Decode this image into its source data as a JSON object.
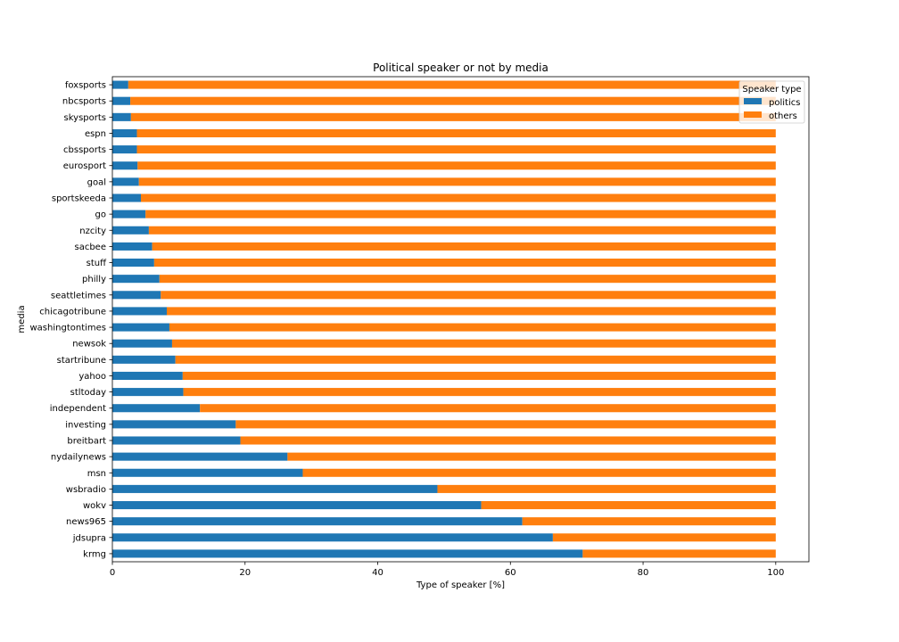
{
  "chart_data": {
    "type": "bar",
    "orientation": "horizontal",
    "stacked": true,
    "title": "Political speaker or not by media",
    "xlabel": "Type of speaker [%]",
    "ylabel": "media",
    "xlim": [
      0,
      105
    ],
    "xticks": [
      0,
      20,
      40,
      60,
      80,
      100
    ],
    "grid": false,
    "legend": {
      "title": "Speaker type",
      "placement": "top-right"
    },
    "categories": [
      "foxsports",
      "nbcsports",
      "skysports",
      "espn",
      "cbssports",
      "eurosport",
      "goal",
      "sportskeeda",
      "go",
      "nzcity",
      "sacbee",
      "stuff",
      "philly",
      "seattletimes",
      "chicagotribune",
      "washingtontimes",
      "newsok",
      "startribune",
      "yahoo",
      "stltoday",
      "independent",
      "investing",
      "breitbart",
      "nydailynews",
      "msn",
      "wsbradio",
      "wokv",
      "news965",
      "jdsupra",
      "krmg"
    ],
    "series": [
      {
        "name": "politics",
        "color": "#1f77b4",
        "values": [
          2.4,
          2.7,
          2.8,
          3.7,
          3.7,
          3.8,
          4.0,
          4.3,
          5.0,
          5.5,
          6.0,
          6.3,
          7.1,
          7.3,
          8.2,
          8.6,
          9.0,
          9.5,
          10.6,
          10.7,
          13.2,
          18.6,
          19.3,
          26.4,
          28.7,
          49.0,
          55.6,
          61.8,
          66.4,
          70.9
        ]
      },
      {
        "name": "others",
        "color": "#ff7f0e",
        "values": [
          97.6,
          97.3,
          97.2,
          96.3,
          96.3,
          96.2,
          96.0,
          95.7,
          95.0,
          94.5,
          94.0,
          93.7,
          92.9,
          92.7,
          91.8,
          91.4,
          91.0,
          90.5,
          89.4,
          89.3,
          86.8,
          81.4,
          80.7,
          73.6,
          71.3,
          51.0,
          44.4,
          38.2,
          33.6,
          29.1
        ]
      }
    ]
  }
}
